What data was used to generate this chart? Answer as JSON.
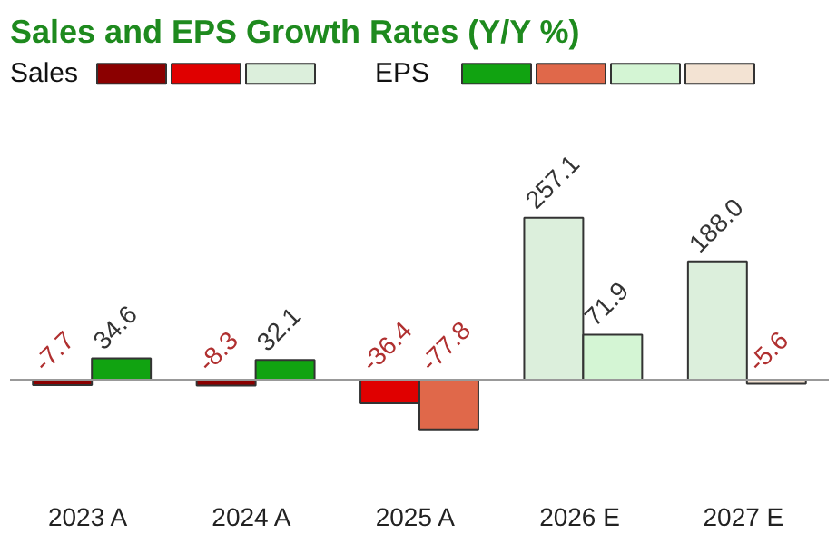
{
  "chart_data": {
    "type": "bar",
    "title": "Sales and EPS Growth Rates (Y/Y %)",
    "categories": [
      "2023  A",
      "2024  A",
      "2025  A",
      "2026  E",
      "2027  E"
    ],
    "series": [
      {
        "name": "Sales",
        "colors": [
          "#8b0000",
          "#8b0000",
          "#e00000",
          "#dcefdc",
          "#dcefdc"
        ],
        "values": [
          -7.7,
          -8.3,
          -36.4,
          257.1,
          188.0
        ],
        "value_labels": [
          "-7.7",
          "-8.3",
          "-36.4",
          "257.1",
          "188.0"
        ]
      },
      {
        "name": "EPS",
        "colors": [
          "#11a311",
          "#11a311",
          "#e0684a",
          "#d4f5d4",
          "#f3e3d3"
        ],
        "values": [
          34.6,
          32.1,
          -77.8,
          71.9,
          -5.6
        ],
        "value_labels": [
          "34.6",
          "32.1",
          "-77.8",
          "71.9",
          "-5.6"
        ]
      }
    ],
    "data_labels": true,
    "legend": "top left",
    "grid": false
  }
}
